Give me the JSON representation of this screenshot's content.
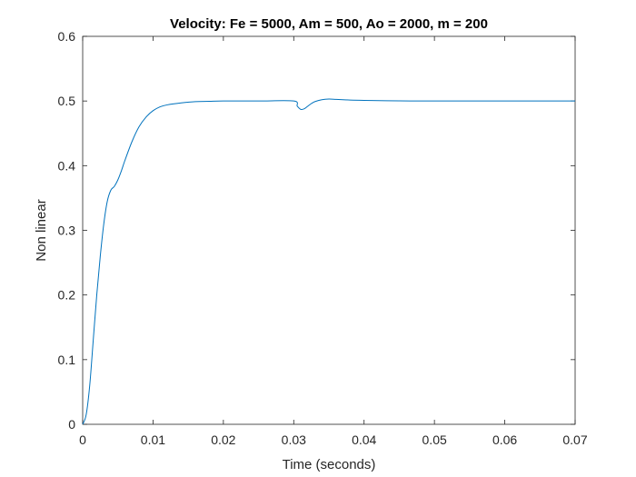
{
  "chart_data": {
    "type": "line",
    "title": "Velocity: Fe = 5000, Am = 500, Ao = 2000, m = 200",
    "xlabel": "Time (seconds)",
    "ylabel": "Non linear",
    "xlim": [
      0,
      0.07
    ],
    "ylim": [
      0,
      0.6
    ],
    "x_ticks": [
      "0",
      "0.01",
      "0.02",
      "0.03",
      "0.04",
      "0.05",
      "0.06",
      "0.07"
    ],
    "y_ticks": [
      "0",
      "0.1",
      "0.2",
      "0.3",
      "0.4",
      "0.5",
      "0.6"
    ],
    "grid": false,
    "series": [
      {
        "color": "#0072bd",
        "x": [
          0,
          0.0005,
          0.001,
          0.0015,
          0.002,
          0.0025,
          0.003,
          0.0035,
          0.004,
          0.0045,
          0.005,
          0.0055,
          0.006,
          0.007,
          0.008,
          0.009,
          0.01,
          0.011,
          0.012,
          0.014,
          0.016,
          0.018,
          0.02,
          0.025,
          0.03,
          0.0305,
          0.031,
          0.0315,
          0.032,
          0.0325,
          0.033,
          0.034,
          0.035,
          0.036,
          0.037,
          0.038,
          0.04,
          0.045,
          0.05,
          0.06,
          0.07
        ],
        "y": [
          0,
          0.015,
          0.06,
          0.13,
          0.2,
          0.26,
          0.31,
          0.345,
          0.362,
          0.368,
          0.378,
          0.392,
          0.408,
          0.437,
          0.46,
          0.475,
          0.485,
          0.491,
          0.494,
          0.497,
          0.499,
          0.4995,
          0.5,
          0.5,
          0.5,
          0.492,
          0.487,
          0.488,
          0.492,
          0.496,
          0.499,
          0.502,
          0.503,
          0.5025,
          0.502,
          0.5015,
          0.501,
          0.5002,
          0.5,
          0.5,
          0.5
        ]
      }
    ]
  }
}
